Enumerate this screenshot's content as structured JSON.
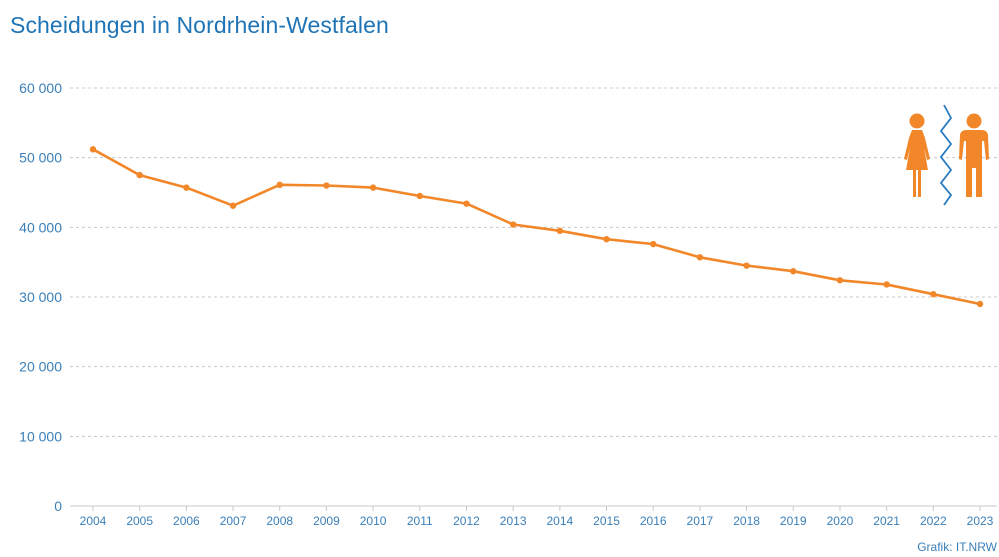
{
  "colors": {
    "title": "#1f74b6",
    "axis_text": "#3b7fb8",
    "line": "#f2872a",
    "grid": "#c8c8c8",
    "separator": "#2a7cc0"
  },
  "chart_data": {
    "type": "line",
    "title": "Scheidungen in Nordrhein-Westfalen",
    "xlabel": "",
    "ylabel": "",
    "x": [
      "2004",
      "2005",
      "2006",
      "2007",
      "2008",
      "2009",
      "2010",
      "2011",
      "2012",
      "2013",
      "2014",
      "2015",
      "2016",
      "2017",
      "2018",
      "2019",
      "2020",
      "2021",
      "2022",
      "2023"
    ],
    "series": [
      {
        "values": [
          51200,
          47500,
          45700,
          43100,
          46100,
          46000,
          45700,
          44500,
          43400,
          40400,
          39500,
          38300,
          37600,
          35700,
          34500,
          33700,
          32400,
          31800,
          30400,
          29000
        ]
      }
    ],
    "ylim": [
      0,
      60000
    ],
    "y_ticks": [
      {
        "value": 0,
        "label": "0"
      },
      {
        "value": 10000,
        "label": "10 000"
      },
      {
        "value": 20000,
        "label": "20 000"
      },
      {
        "value": 30000,
        "label": "30 000"
      },
      {
        "value": 40000,
        "label": "40 000"
      },
      {
        "value": 50000,
        "label": "50 000"
      },
      {
        "value": 60000,
        "label": "60 000"
      }
    ],
    "grid": true,
    "legend": "none",
    "credit": "Grafik: IT.NRW"
  },
  "illustration": {
    "icons": [
      "woman-icon",
      "zigzag-separator-icon",
      "man-icon"
    ]
  }
}
